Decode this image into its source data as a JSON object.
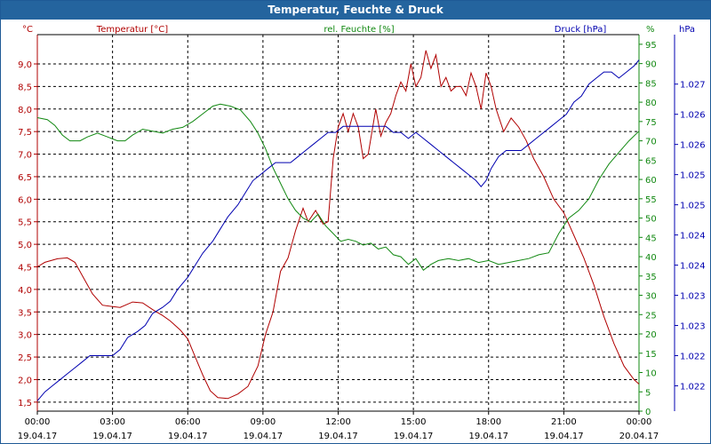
{
  "window": {
    "title": "Temperatur, Feuchte & Druck"
  },
  "chart_data": {
    "type": "line",
    "title": "Temperatur, Feuchte & Druck",
    "grid": true,
    "colors": {
      "temperature": "#b00000",
      "humidity": "#118811",
      "pressure": "#0000b0",
      "grid": "#000000"
    },
    "x_ticks": [
      {
        "time": "00:00",
        "date": "19.04.17"
      },
      {
        "time": "03:00",
        "date": "19.04.17"
      },
      {
        "time": "06:00",
        "date": "19.04.17"
      },
      {
        "time": "09:00",
        "date": "19.04.17"
      },
      {
        "time": "12:00",
        "date": "19.04.17"
      },
      {
        "time": "15:00",
        "date": "19.04.17"
      },
      {
        "time": "18:00",
        "date": "19.04.17"
      },
      {
        "time": "21:00",
        "date": "19.04.17"
      },
      {
        "time": "00:00",
        "date": "20.04.17"
      }
    ],
    "x_range_hours": [
      0,
      24
    ],
    "left_axis": {
      "unit": "°C",
      "range": [
        1.3,
        9.65
      ],
      "ticks": [
        "9,0",
        "8,5",
        "8,0",
        "7,5",
        "7,0",
        "6,5",
        "6,0",
        "5,5",
        "5,0",
        "4,5",
        "4,0",
        "3,5",
        "3,0",
        "2,5",
        "2,0",
        "1,5"
      ],
      "tick_values": [
        9.0,
        8.5,
        8.0,
        7.5,
        7.0,
        6.5,
        6.0,
        5.5,
        5.0,
        4.5,
        4.0,
        3.5,
        3.0,
        2.5,
        2.0,
        1.5
      ]
    },
    "right_axis_1": {
      "unit": "%",
      "range": [
        0,
        97.5
      ],
      "ticks": [
        "95",
        "90",
        "85",
        "80",
        "75",
        "70",
        "65",
        "60",
        "55",
        "50",
        "45",
        "40",
        "35",
        "30",
        "25",
        "20",
        "15",
        "10",
        "5",
        "0"
      ],
      "tick_values": [
        95,
        90,
        85,
        80,
        75,
        70,
        65,
        60,
        55,
        50,
        45,
        40,
        35,
        30,
        25,
        20,
        15,
        10,
        5,
        0
      ]
    },
    "right_axis_2": {
      "unit": "hPa",
      "range": [
        1.02158,
        1.02782
      ],
      "ticks": [
        "1.027",
        "1.026",
        "1.026",
        "1.025",
        "1.025",
        "1.024",
        "1.024",
        "1.023",
        "1.023",
        "1.022",
        "1.022"
      ],
      "tick_values": [
        1.027,
        1.0265,
        1.026,
        1.0255,
        1.025,
        1.0245,
        1.024,
        1.0235,
        1.023,
        1.0225,
        1.022
      ]
    },
    "series": [
      {
        "name": "Temperatur [°C]",
        "key": "temperature",
        "axis": "left",
        "points": [
          [
            0,
            4.5
          ],
          [
            0.3,
            4.6
          ],
          [
            0.8,
            4.68
          ],
          [
            1.2,
            4.7
          ],
          [
            1.5,
            4.6
          ],
          [
            1.8,
            4.3
          ],
          [
            2.2,
            3.9
          ],
          [
            2.6,
            3.65
          ],
          [
            3.0,
            3.62
          ],
          [
            3.3,
            3.6
          ],
          [
            3.8,
            3.72
          ],
          [
            4.2,
            3.7
          ],
          [
            4.6,
            3.55
          ],
          [
            5.0,
            3.42
          ],
          [
            5.3,
            3.3
          ],
          [
            5.7,
            3.1
          ],
          [
            6.0,
            2.9
          ],
          [
            6.3,
            2.5
          ],
          [
            6.6,
            2.1
          ],
          [
            6.9,
            1.75
          ],
          [
            7.2,
            1.6
          ],
          [
            7.6,
            1.58
          ],
          [
            8.0,
            1.68
          ],
          [
            8.4,
            1.85
          ],
          [
            8.8,
            2.3
          ],
          [
            9.1,
            3.0
          ],
          [
            9.4,
            3.5
          ],
          [
            9.7,
            4.4
          ],
          [
            10.0,
            4.7
          ],
          [
            10.3,
            5.3
          ],
          [
            10.6,
            5.8
          ],
          [
            10.8,
            5.5
          ],
          [
            11.1,
            5.75
          ],
          [
            11.4,
            5.45
          ],
          [
            11.6,
            5.5
          ],
          [
            11.8,
            6.9
          ],
          [
            12.0,
            7.6
          ],
          [
            12.2,
            7.9
          ],
          [
            12.4,
            7.5
          ],
          [
            12.6,
            7.9
          ],
          [
            12.8,
            7.6
          ],
          [
            13.0,
            6.9
          ],
          [
            13.2,
            7.0
          ],
          [
            13.5,
            8.0
          ],
          [
            13.7,
            7.4
          ],
          [
            13.9,
            7.7
          ],
          [
            14.1,
            7.9
          ],
          [
            14.3,
            8.3
          ],
          [
            14.5,
            8.6
          ],
          [
            14.7,
            8.4
          ],
          [
            14.9,
            9.0
          ],
          [
            15.1,
            8.5
          ],
          [
            15.3,
            8.7
          ],
          [
            15.5,
            9.3
          ],
          [
            15.7,
            8.9
          ],
          [
            15.9,
            9.2
          ],
          [
            16.1,
            8.5
          ],
          [
            16.3,
            8.7
          ],
          [
            16.5,
            8.4
          ],
          [
            16.7,
            8.5
          ],
          [
            16.9,
            8.5
          ],
          [
            17.1,
            8.3
          ],
          [
            17.3,
            8.8
          ],
          [
            17.5,
            8.5
          ],
          [
            17.7,
            8.0
          ],
          [
            17.9,
            8.8
          ],
          [
            18.1,
            8.5
          ],
          [
            18.3,
            8.0
          ],
          [
            18.6,
            7.5
          ],
          [
            18.9,
            7.8
          ],
          [
            19.2,
            7.6
          ],
          [
            19.5,
            7.3
          ],
          [
            19.8,
            6.9
          ],
          [
            20.2,
            6.5
          ],
          [
            20.6,
            6.0
          ],
          [
            21.0,
            5.7
          ],
          [
            21.4,
            5.2
          ],
          [
            21.8,
            4.7
          ],
          [
            22.2,
            4.1
          ],
          [
            22.6,
            3.4
          ],
          [
            23.0,
            2.8
          ],
          [
            23.4,
            2.3
          ],
          [
            23.8,
            2.0
          ],
          [
            24.0,
            1.9
          ]
        ]
      },
      {
        "name": "rel. Feuchte [%]",
        "key": "humidity",
        "axis": "right1",
        "points": [
          [
            0,
            76
          ],
          [
            0.4,
            75.5
          ],
          [
            0.7,
            74
          ],
          [
            1.0,
            71.5
          ],
          [
            1.3,
            70
          ],
          [
            1.7,
            70
          ],
          [
            2.0,
            71
          ],
          [
            2.4,
            72
          ],
          [
            2.8,
            71
          ],
          [
            3.2,
            70
          ],
          [
            3.5,
            70
          ],
          [
            3.8,
            71.5
          ],
          [
            4.2,
            73
          ],
          [
            4.6,
            72.5
          ],
          [
            5.0,
            72
          ],
          [
            5.4,
            73
          ],
          [
            5.8,
            73.5
          ],
          [
            6.2,
            75
          ],
          [
            6.6,
            77
          ],
          [
            7.0,
            79
          ],
          [
            7.3,
            79.5
          ],
          [
            7.7,
            79
          ],
          [
            8.1,
            78
          ],
          [
            8.5,
            75
          ],
          [
            8.8,
            72
          ],
          [
            9.1,
            68
          ],
          [
            9.4,
            63
          ],
          [
            9.7,
            59
          ],
          [
            10.0,
            55
          ],
          [
            10.3,
            52
          ],
          [
            10.6,
            50
          ],
          [
            10.9,
            49
          ],
          [
            11.2,
            51
          ],
          [
            11.5,
            48
          ],
          [
            11.8,
            46
          ],
          [
            12.1,
            44
          ],
          [
            12.4,
            44.5
          ],
          [
            12.7,
            44
          ],
          [
            13.0,
            43
          ],
          [
            13.3,
            43.5
          ],
          [
            13.6,
            42
          ],
          [
            13.9,
            42.5
          ],
          [
            14.2,
            40.5
          ],
          [
            14.5,
            40
          ],
          [
            14.8,
            38
          ],
          [
            15.1,
            39.5
          ],
          [
            15.4,
            36.5
          ],
          [
            15.7,
            38
          ],
          [
            16.0,
            39
          ],
          [
            16.4,
            39.5
          ],
          [
            16.8,
            39
          ],
          [
            17.2,
            39.5
          ],
          [
            17.6,
            38.5
          ],
          [
            18.0,
            39
          ],
          [
            18.4,
            38
          ],
          [
            18.8,
            38.5
          ],
          [
            19.2,
            39
          ],
          [
            19.6,
            39.5
          ],
          [
            20.0,
            40.5
          ],
          [
            20.4,
            41
          ],
          [
            20.8,
            46
          ],
          [
            21.2,
            50
          ],
          [
            21.6,
            52
          ],
          [
            22.0,
            55
          ],
          [
            22.4,
            60
          ],
          [
            22.8,
            64
          ],
          [
            23.2,
            67
          ],
          [
            23.6,
            70
          ],
          [
            24.0,
            72.5
          ]
        ]
      },
      {
        "name": "Druck [hPa]",
        "key": "pressure",
        "axis": "right2",
        "points": [
          [
            0,
            1.02175
          ],
          [
            0.3,
            1.0219
          ],
          [
            0.6,
            1.022
          ],
          [
            0.9,
            1.0221
          ],
          [
            1.2,
            1.0222
          ],
          [
            1.5,
            1.0223
          ],
          [
            1.8,
            1.0224
          ],
          [
            2.1,
            1.0225
          ],
          [
            2.4,
            1.0225
          ],
          [
            3.0,
            1.0225
          ],
          [
            3.3,
            1.0226
          ],
          [
            3.6,
            1.0228
          ],
          [
            4.0,
            1.0229
          ],
          [
            4.3,
            1.023
          ],
          [
            4.6,
            1.0232
          ],
          [
            5.0,
            1.0233
          ],
          [
            5.3,
            1.0234
          ],
          [
            5.6,
            1.0236
          ],
          [
            6.0,
            1.0238
          ],
          [
            6.3,
            1.024
          ],
          [
            6.6,
            1.0242
          ],
          [
            7.0,
            1.0244
          ],
          [
            7.3,
            1.0246
          ],
          [
            7.6,
            1.0248
          ],
          [
            8.0,
            1.025
          ],
          [
            8.3,
            1.0252
          ],
          [
            8.6,
            1.0254
          ],
          [
            8.9,
            1.0255
          ],
          [
            9.2,
            1.0256
          ],
          [
            9.5,
            1.0257
          ],
          [
            9.8,
            1.0257
          ],
          [
            10.1,
            1.0257
          ],
          [
            10.4,
            1.0258
          ],
          [
            10.7,
            1.0259
          ],
          [
            11.0,
            1.026
          ],
          [
            11.3,
            1.0261
          ],
          [
            11.6,
            1.0262
          ],
          [
            11.9,
            1.0262
          ],
          [
            12.2,
            1.0263
          ],
          [
            12.5,
            1.0263
          ],
          [
            13.0,
            1.0263
          ],
          [
            13.5,
            1.0263
          ],
          [
            13.9,
            1.0263
          ],
          [
            14.2,
            1.0262
          ],
          [
            14.5,
            1.0262
          ],
          [
            14.8,
            1.0261
          ],
          [
            15.1,
            1.0262
          ],
          [
            15.4,
            1.0261
          ],
          [
            15.7,
            1.026
          ],
          [
            16.0,
            1.0259
          ],
          [
            16.3,
            1.0258
          ],
          [
            16.6,
            1.0257
          ],
          [
            16.9,
            1.0256
          ],
          [
            17.2,
            1.0255
          ],
          [
            17.5,
            1.0254
          ],
          [
            17.7,
            1.0253
          ],
          [
            17.9,
            1.0254
          ],
          [
            18.1,
            1.0256
          ],
          [
            18.4,
            1.0258
          ],
          [
            18.7,
            1.0259
          ],
          [
            19.0,
            1.0259
          ],
          [
            19.3,
            1.0259
          ],
          [
            19.6,
            1.026
          ],
          [
            19.9,
            1.0261
          ],
          [
            20.2,
            1.0262
          ],
          [
            20.5,
            1.0263
          ],
          [
            20.8,
            1.0264
          ],
          [
            21.1,
            1.0265
          ],
          [
            21.4,
            1.0267
          ],
          [
            21.7,
            1.0268
          ],
          [
            22.0,
            1.027
          ],
          [
            22.3,
            1.0271
          ],
          [
            22.6,
            1.0272
          ],
          [
            22.9,
            1.0272
          ],
          [
            23.2,
            1.0271
          ],
          [
            23.5,
            1.0272
          ],
          [
            23.8,
            1.0273
          ],
          [
            24.0,
            1.0274
          ]
        ]
      }
    ]
  }
}
